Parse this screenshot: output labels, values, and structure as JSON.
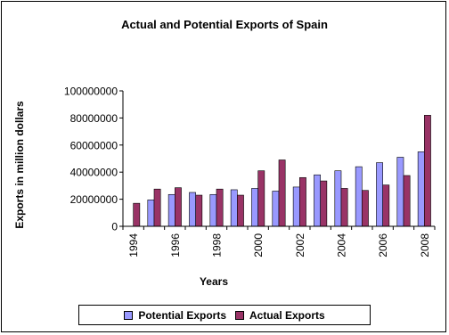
{
  "chart_data": {
    "type": "bar",
    "title": "Actual and Potential Exports of Spain",
    "xlabel": "Years",
    "ylabel": "Exports in million dollars",
    "categories": [
      "1994",
      "1995",
      "1996",
      "1997",
      "1998",
      "1999",
      "2000",
      "2001",
      "2002",
      "2003",
      "2004",
      "2005",
      "2006",
      "2007",
      "2008"
    ],
    "x_tick_labels": [
      "1994",
      "1996",
      "1998",
      "2000",
      "2002",
      "2004",
      "2006",
      "2008"
    ],
    "y_ticks": [
      "0",
      "20000000",
      "40000000",
      "60000000",
      "80000000",
      "100000000"
    ],
    "ylim": [
      0,
      100000000
    ],
    "grid": false,
    "legend_position": "bottom",
    "series": [
      {
        "name": "Potential Exports",
        "color": "#9999ff",
        "values": [
          0,
          19500000,
          23500000,
          25000000,
          23500000,
          27000000,
          28000000,
          26000000,
          29000000,
          38000000,
          41000000,
          44000000,
          47000000,
          51000000,
          55000000
        ]
      },
      {
        "name": "Actual Exports",
        "color": "#993366",
        "values": [
          17000000,
          27500000,
          28500000,
          23000000,
          27500000,
          23000000,
          41000000,
          49000000,
          36000000,
          33500000,
          28000000,
          26500000,
          30500000,
          37500000,
          82000000
        ]
      }
    ]
  }
}
